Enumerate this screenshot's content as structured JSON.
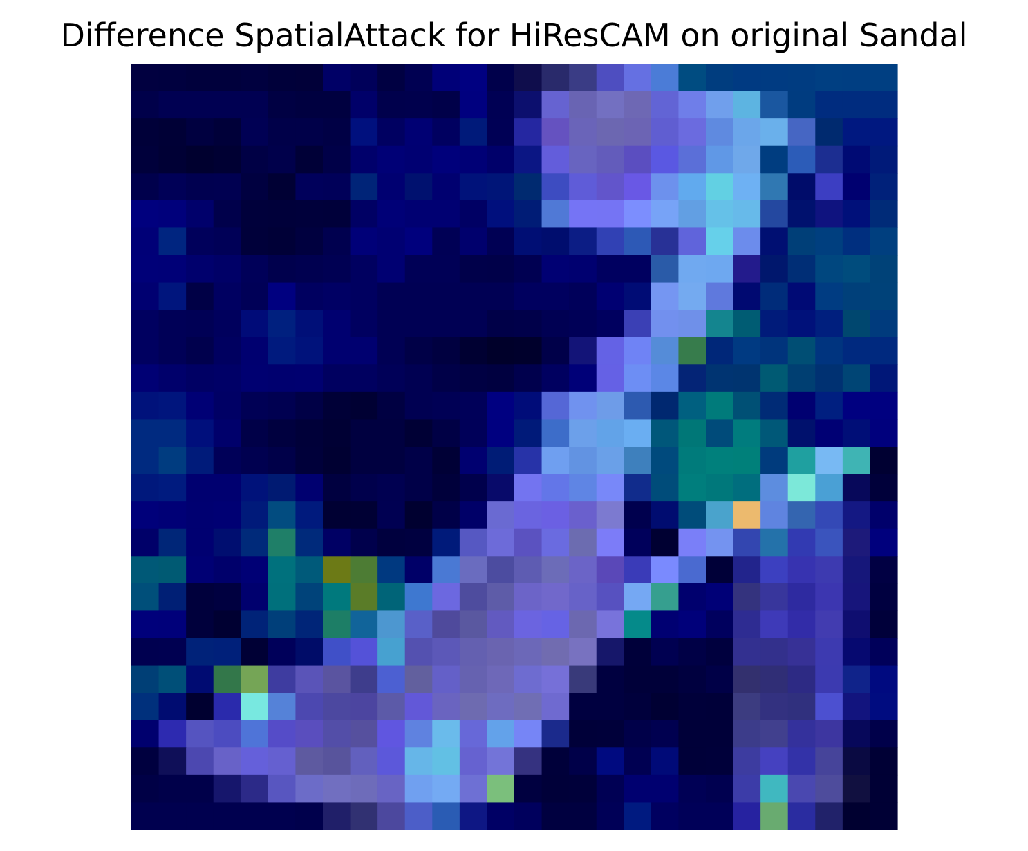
{
  "chart_data": {
    "type": "heatmap",
    "title": "Difference SpatialAttack for HiResCAM on original Sandal",
    "xlabel": "",
    "ylabel": "",
    "axes_visible": false,
    "grid": false,
    "rows": 28,
    "cols": 28,
    "cell_colors": [
      [
        "#010040",
        "#00003f",
        "#00003c",
        "#00003c",
        "#00003f",
        "#00003a",
        "#010039",
        "#000066",
        "#00005a",
        "#000042",
        "#000052",
        "#000078",
        "#000081",
        "#00004b",
        "#0f0d4c",
        "#292a6b",
        "#3a3c85",
        "#4e4ec0",
        "#6570e2",
        "#4b7cd7",
        "#004c81",
        "#003d7f",
        "#003a82",
        "#003b82",
        "#003c81",
        "#003f82",
        "#003e82",
        "#003f82"
      ],
      [
        "#00004a",
        "#000052",
        "#000052",
        "#000052",
        "#000052",
        "#000043",
        "#000040",
        "#000040",
        "#000069",
        "#00004c",
        "#00004d",
        "#000049",
        "#00007f",
        "#000054",
        "#0c0f6e",
        "#6663d1",
        "#6964b3",
        "#7370c1",
        "#6e68b4",
        "#6264d5",
        "#6f7ee9",
        "#709fec",
        "#5db4e1",
        "#1a57a0",
        "#003c80",
        "#002c7f",
        "#002c7f",
        "#002c7f"
      ],
      [
        "#000039",
        "#000036",
        "#000040",
        "#000039",
        "#000054",
        "#000049",
        "#000049",
        "#000045",
        "#00107e",
        "#000061",
        "#000073",
        "#000060",
        "#001a7a",
        "#000055",
        "#2527a1",
        "#6552c0",
        "#6a64b9",
        "#6c67b1",
        "#6c64b4",
        "#605ed1",
        "#6b6bdf",
        "#5f8ae0",
        "#6ba6ea",
        "#6ab0eb",
        "#4666c3",
        "#002a6f",
        "#001880",
        "#001880"
      ],
      [
        "#00003b",
        "#000035",
        "#00002f",
        "#000033",
        "#000045",
        "#00004b",
        "#000037",
        "#000048",
        "#00006b",
        "#000076",
        "#000072",
        "#00007b",
        "#000076",
        "#00006a",
        "#0b1684",
        "#635ddb",
        "#6864c0",
        "#635cbb",
        "#5b4ec0",
        "#5a58e2",
        "#5b6fd8",
        "#6098e6",
        "#6fa8ea",
        "#003d80",
        "#2c5cb8",
        "#1c2e91",
        "#000a74",
        "#001a79"
      ],
      [
        "#00004c",
        "#000057",
        "#000050",
        "#000051",
        "#000040",
        "#000034",
        "#00005b",
        "#000059",
        "#002478",
        "#000071",
        "#00116f",
        "#000070",
        "#00127a",
        "#001578",
        "#002a70",
        "#3d4cc1",
        "#5f5cd8",
        "#6255cb",
        "#6958e5",
        "#6d91ed",
        "#61aaee",
        "#62d0e3",
        "#6eb1f3",
        "#3078b2",
        "#000c6a",
        "#3c3ec2",
        "#000070",
        "#00217a"
      ],
      [
        "#00007e",
        "#00007b",
        "#00006b",
        "#00004b",
        "#00003b",
        "#00003a",
        "#00003b",
        "#00003a",
        "#000064",
        "#000077",
        "#000072",
        "#000072",
        "#000064",
        "#000f7d",
        "#001c76",
        "#5079d6",
        "#7574f5",
        "#7574f4",
        "#7c8efe",
        "#77a3f7",
        "#629fe3",
        "#65c1e8",
        "#67baea",
        "#2448a0",
        "#00116e",
        "#0f137f",
        "#00107a",
        "#002b78"
      ],
      [
        "#000077",
        "#002580",
        "#00005b",
        "#000057",
        "#00003a",
        "#000037",
        "#00003f",
        "#00004f",
        "#000078",
        "#000072",
        "#00007d",
        "#000055",
        "#00006d",
        "#000054",
        "#000e74",
        "#000d6e",
        "#0c1d85",
        "#3141b4",
        "#2d59b6",
        "#283196",
        "#6064db",
        "#66d0ea",
        "#6c8cec",
        "#000f72",
        "#003f78",
        "#003f7f",
        "#002f7f",
        "#003f7f"
      ],
      [
        "#000078",
        "#000077",
        "#00006d",
        "#000067",
        "#000059",
        "#00004d",
        "#000050",
        "#000053",
        "#000060",
        "#000072",
        "#000056",
        "#000056",
        "#00004a",
        "#000049",
        "#000052",
        "#000073",
        "#000070",
        "#000060",
        "#000060",
        "#2a5ba8",
        "#70a9f0",
        "#6ea8f0",
        "#231b8c",
        "#00176d",
        "#002e76",
        "#00477f",
        "#004c7d",
        "#004278"
      ],
      [
        "#000071",
        "#00157d",
        "#000046",
        "#000061",
        "#000057",
        "#000080",
        "#000060",
        "#000064",
        "#000060",
        "#000054",
        "#000054",
        "#000054",
        "#000054",
        "#000054",
        "#00005f",
        "#00005f",
        "#00005a",
        "#000072",
        "#000c75",
        "#7596f2",
        "#74aaf0",
        "#5f79dd",
        "#000971",
        "#002c7a",
        "#000a75",
        "#003c82",
        "#00407a",
        "#004279"
      ],
      [
        "#000060",
        "#000057",
        "#000055",
        "#00005d",
        "#000b78",
        "#00207f",
        "#000f78",
        "#000070",
        "#000060",
        "#000054",
        "#000054",
        "#000054",
        "#000054",
        "#000048",
        "#00004a",
        "#000053",
        "#000057",
        "#00005f",
        "#3b40b5",
        "#7290ee",
        "#6f90e9",
        "#14858f",
        "#005c73",
        "#001b7a",
        "#00117a",
        "#001f7e",
        "#00476f",
        "#003b7d"
      ],
      [
        "#000060",
        "#000057",
        "#00004d",
        "#000060",
        "#000070",
        "#001a7e",
        "#00127b",
        "#000070",
        "#000070",
        "#000054",
        "#000047",
        "#000040",
        "#000032",
        "#00002a",
        "#00002c",
        "#000049",
        "#131478",
        "#6462e5",
        "#6f83f5",
        "#558cd8",
        "#377c4c",
        "#002779",
        "#003a82",
        "#00347c",
        "#004e74",
        "#00347f",
        "#00297f",
        "#00297f"
      ],
      [
        "#000074",
        "#00006b",
        "#000064",
        "#000067",
        "#000071",
        "#00006f",
        "#000070",
        "#000060",
        "#000060",
        "#000058",
        "#000052",
        "#000048",
        "#000043",
        "#000040",
        "#00004d",
        "#000060",
        "#000078",
        "#6561e5",
        "#6d8ef4",
        "#5b87e6",
        "#042476",
        "#003472",
        "#003470",
        "#005a73",
        "#003f72",
        "#003172",
        "#004575",
        "#001778"
      ],
      [
        "#00127b",
        "#00157d",
        "#000075",
        "#000065",
        "#000055",
        "#000051",
        "#000046",
        "#000037",
        "#000033",
        "#000042",
        "#000052",
        "#000055",
        "#000059",
        "#000081",
        "#000c79",
        "#5567d6",
        "#7092ef",
        "#6e9ce8",
        "#2d5ab0",
        "#002870",
        "#006080",
        "#007b7b",
        "#005075",
        "#002b76",
        "#000071",
        "#001f80",
        "#000080",
        "#000080"
      ],
      [
        "#002a80",
        "#002a80",
        "#000f7c",
        "#00006b",
        "#000048",
        "#00003f",
        "#000039",
        "#000034",
        "#000040",
        "#000040",
        "#000035",
        "#000045",
        "#000059",
        "#000080",
        "#001a79",
        "#3d6dc9",
        "#6ca0ea",
        "#62a3e8",
        "#6aaef2",
        "#00577a",
        "#007777",
        "#004b7a",
        "#007c7e",
        "#005878",
        "#00116d",
        "#000074",
        "#000e77",
        "#00007d"
      ],
      [
        "#002a80",
        "#003c80",
        "#001b7a",
        "#000058",
        "#000050",
        "#000049",
        "#00003a",
        "#000032",
        "#000040",
        "#000040",
        "#000048",
        "#000036",
        "#000070",
        "#001c76",
        "#2733a8",
        "#6f9ff0",
        "#6293e2",
        "#6aa0e8",
        "#3e80bd",
        "#004a7d",
        "#007b7b",
        "#00807c",
        "#00807a",
        "#003b7d",
        "#1fa0a0",
        "#78b9f3",
        "#3fb4b4",
        "#000032"
      ],
      [
        "#00187c",
        "#001b7f",
        "#000070",
        "#000070",
        "#00127a",
        "#001a72",
        "#000070",
        "#000040",
        "#00004c",
        "#000051",
        "#000048",
        "#00003b",
        "#00004c",
        "#080a6a",
        "#7374f0",
        "#6376e8",
        "#5f85e4",
        "#7888f9",
        "#112c8c",
        "#004c7a",
        "#007e7d",
        "#00787b",
        "#006e7e",
        "#5d8ddf",
        "#7ce8d9",
        "#4aa0d5",
        "#07085a",
        "#00003a"
      ],
      [
        "#00007a",
        "#000076",
        "#000071",
        "#000073",
        "#001a7a",
        "#024c80",
        "#001a7d",
        "#000033",
        "#000034",
        "#000052",
        "#000030",
        "#000048",
        "#000068",
        "#6a6ad2",
        "#6a64e0",
        "#6b60e3",
        "#6a60cd",
        "#7c7ad0",
        "#00004e",
        "#000c70",
        "#004c7a",
        "#4aa3cc",
        "#ecba6e",
        "#5f84e0",
        "#3465b0",
        "#3449b6",
        "#141883",
        "#00006b"
      ],
      [
        "#000069",
        "#002678",
        "#000071",
        "#000e70",
        "#002a7a",
        "#1f7f68",
        "#002a7b",
        "#000064",
        "#00004c",
        "#00003e",
        "#000040",
        "#001a7a",
        "#5658c2",
        "#6d6bd9",
        "#5b52c0",
        "#6a6be0",
        "#6c6cb0",
        "#7c7cf8",
        "#00005b",
        "#000032",
        "#7a7ff8",
        "#7493f0",
        "#3346b0",
        "#2472aa",
        "#323ab2",
        "#3a54bd",
        "#1d1a7a",
        "#00007d"
      ],
      [
        "#005977",
        "#005a73",
        "#000074",
        "#00006b",
        "#000075",
        "#00717d",
        "#005a7a",
        "#6c7a16",
        "#4d7c34",
        "#003980",
        "#000068",
        "#4a79d4",
        "#6a6cbf",
        "#4c4ca0",
        "#5e5cb2",
        "#6c6cb8",
        "#6b64c7",
        "#5a48b8",
        "#3a3bb8",
        "#7a8afe",
        "#4a6ad0",
        "#000038",
        "#22248c",
        "#3c40c0",
        "#3733b0",
        "#3d3ab0",
        "#16177a",
        "#010043"
      ],
      [
        "#004f7a",
        "#001f75",
        "#00003c",
        "#000040",
        "#00006e",
        "#00707c",
        "#00437a",
        "#00797d",
        "#5a7c28",
        "#006478",
        "#3e78d0",
        "#6c68e0",
        "#4e4c9e",
        "#5e5ca8",
        "#6c64c8",
        "#7168cb",
        "#6762c8",
        "#5751c0",
        "#75a8f3",
        "#369f8f",
        "#00006e",
        "#000077",
        "#34337e",
        "#38369c",
        "#2e2aa0",
        "#3c36b0",
        "#17157b",
        "#000040"
      ],
      [
        "#00007b",
        "#00007a",
        "#00003c",
        "#000032",
        "#002378",
        "#003f7a",
        "#002578",
        "#1d7e66",
        "#11649a",
        "#4d97d0",
        "#5960c8",
        "#4f4a9c",
        "#5a58a0",
        "#625ac0",
        "#6b64e0",
        "#6663e4",
        "#6c68b0",
        "#7873db",
        "#058a8a",
        "#000072",
        "#00007a",
        "#00005e",
        "#2e2c92",
        "#3e3ab8",
        "#322ca8",
        "#423cb0",
        "#0f0e70",
        "#00003a"
      ],
      [
        "#000050",
        "#000051",
        "#002279",
        "#00207a",
        "#000035",
        "#00005a",
        "#000c68",
        "#4050c8",
        "#5452d8",
        "#47a1d0",
        "#5451b0",
        "#5c58b8",
        "#6460b0",
        "#6a64b0",
        "#6c68b8",
        "#716cb0",
        "#7872c0",
        "#16176a",
        "#00003a",
        "#000051",
        "#000046",
        "#00003e",
        "#333090",
        "#33308c",
        "#373196",
        "#3d3ab0",
        "#060970",
        "#00005a"
      ],
      [
        "#003f76",
        "#004f78",
        "#000b72",
        "#33774a",
        "#75a556",
        "#3e3ca0",
        "#5a54b8",
        "#5a54a0",
        "#3e3d8c",
        "#4c60d2",
        "#62609e",
        "#6460c8",
        "#6662b0",
        "#6e68b8",
        "#6e6cd0",
        "#7670d8",
        "#393a7a",
        "#000040",
        "#000039",
        "#000039",
        "#00003f",
        "#000047",
        "#33306e",
        "#302e76",
        "#2d2a84",
        "#3c3ab0",
        "#10238a",
        "#000a80"
      ],
      [
        "#00307c",
        "#000c71",
        "#000030",
        "#2a2aac",
        "#78e8e0",
        "#5582d8",
        "#4c48b0",
        "#4c48a0",
        "#4c45a0",
        "#5c5aa8",
        "#6258d8",
        "#6a64c0",
        "#6e6bb0",
        "#6e6cc0",
        "#706eb4",
        "#6f6ad0",
        "#000040",
        "#000040",
        "#00003c",
        "#000033",
        "#00003a",
        "#000039",
        "#3c3c80",
        "#333180",
        "#30307e",
        "#4c50d0",
        "#12147e",
        "#000c80"
      ],
      [
        "#00006e",
        "#2d2ab0",
        "#5554c0",
        "#4c4cc0",
        "#4f74d8",
        "#554cc8",
        "#5a4ebe",
        "#534ea8",
        "#56509e",
        "#6056e0",
        "#5f82e0",
        "#6abbeb",
        "#6768d8",
        "#63a2ea",
        "#7685f6",
        "#1b2a8c",
        "#000039",
        "#00003a",
        "#000049",
        "#000050",
        "#000039",
        "#000039",
        "#3c3c8a",
        "#41408e",
        "#34319c",
        "#3d36a0",
        "#07085a",
        "#00004a"
      ],
      [
        "#00003f",
        "#0f0f58",
        "#4c48b0",
        "#6862c8",
        "#6560da",
        "#6560d0",
        "#5e5aa0",
        "#58549c",
        "#6260be",
        "#5c58da",
        "#66b6e8",
        "#62c0e4",
        "#6662d0",
        "#7374d8",
        "#353280",
        "#00003a",
        "#000049",
        "#000a80",
        "#000052",
        "#000a78",
        "#000039",
        "#00003a",
        "#3d3ca0",
        "#4541c0",
        "#3332a8",
        "#46449a",
        "#0a0a42",
        "#000035"
      ],
      [
        "#000046",
        "#00004a",
        "#00004a",
        "#16166c",
        "#2c2a88",
        "#5856c0",
        "#6c6cc8",
        "#716fc0",
        "#6e6cba",
        "#6864c4",
        "#70a0f0",
        "#74aaf3",
        "#6e70d4",
        "#7bbf7c",
        "#000040",
        "#000039",
        "#00003a",
        "#000054",
        "#000070",
        "#000070",
        "#000055",
        "#000050",
        "#3c3ca8",
        "#40b8c0",
        "#4a48b0",
        "#4e4c9c",
        "#111040",
        "#000035"
      ],
      [
        "#00004f",
        "#00004f",
        "#00004f",
        "#00004f",
        "#00004f",
        "#00004f",
        "#00004c",
        "#201f69",
        "#313172",
        "#4c489e",
        "#4c5ec8",
        "#2a5cb4",
        "#0e1784",
        "#000065",
        "#00005d",
        "#000040",
        "#000040",
        "#000057",
        "#001a80",
        "#000060",
        "#000058",
        "#000058",
        "#2622a0",
        "#69ab70",
        "#2a2ca0",
        "#21226a",
        "#000030",
        "#000035"
      ]
    ]
  }
}
